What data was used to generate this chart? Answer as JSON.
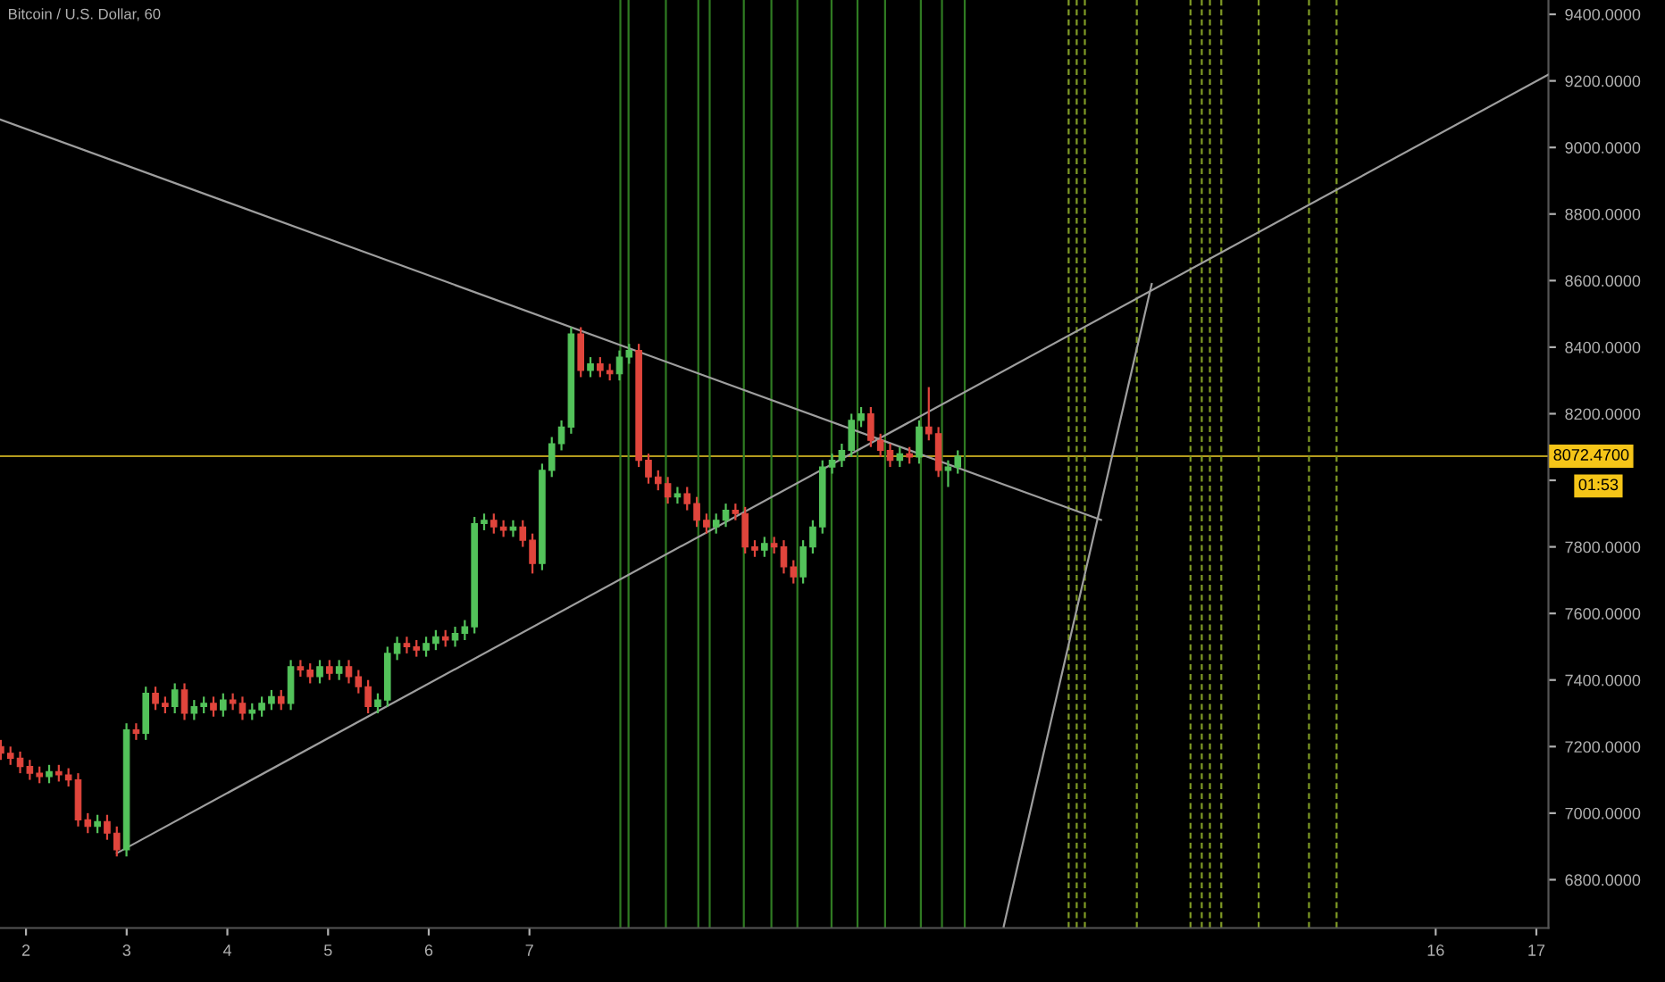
{
  "chart_data": {
    "type": "candlestick",
    "title": "Bitcoin / U.S. Dollar, 60",
    "x": [
      1.75,
      1.846,
      1.942,
      2.038,
      2.134,
      2.23,
      2.326,
      2.422,
      2.518,
      2.614,
      2.71,
      2.806,
      2.902,
      2.998,
      3.094,
      3.19,
      3.286,
      3.382,
      3.478,
      3.574,
      3.67,
      3.766,
      3.862,
      3.958,
      4.054,
      4.15,
      4.246,
      4.342,
      4.438,
      4.534,
      4.63,
      4.726,
      4.822,
      4.918,
      5.014,
      5.11,
      5.206,
      5.302,
      5.398,
      5.494,
      5.59,
      5.686,
      5.782,
      5.878,
      5.974,
      6.07,
      6.166,
      6.262,
      6.358,
      6.454,
      6.55,
      6.646,
      6.742,
      6.838,
      6.934,
      7.03,
      7.126,
      7.222,
      7.318,
      7.414,
      7.51,
      7.606,
      7.702,
      7.798,
      7.894,
      7.99,
      8.086,
      8.182,
      8.278,
      8.374,
      8.47,
      8.566,
      8.662,
      8.758,
      8.854,
      8.95,
      9.046,
      9.142,
      9.238,
      9.334,
      9.43,
      9.526,
      9.622,
      9.718,
      9.814,
      9.91,
      10.006,
      10.102,
      10.198,
      10.294,
      10.39,
      10.486,
      10.582,
      10.678,
      10.774,
      10.87,
      10.966,
      11.062,
      11.158,
      11.254
    ],
    "ohlc": [
      [
        7200,
        7220,
        7160,
        7180
      ],
      [
        7180,
        7200,
        7145,
        7165
      ],
      [
        7165,
        7185,
        7120,
        7140
      ],
      [
        7140,
        7160,
        7100,
        7120
      ],
      [
        7120,
        7140,
        7090,
        7110
      ],
      [
        7110,
        7145,
        7090,
        7125
      ],
      [
        7125,
        7145,
        7095,
        7115
      ],
      [
        7115,
        7135,
        7080,
        7100
      ],
      [
        7100,
        7120,
        6960,
        6980
      ],
      [
        6980,
        7000,
        6940,
        6960
      ],
      [
        6960,
        6995,
        6940,
        6975
      ],
      [
        6975,
        6995,
        6920,
        6940
      ],
      [
        6940,
        6960,
        6870,
        6890
      ],
      [
        6890,
        7270,
        6870,
        7250
      ],
      [
        7250,
        7270,
        7220,
        7240
      ],
      [
        7240,
        7380,
        7220,
        7360
      ],
      [
        7360,
        7380,
        7310,
        7330
      ],
      [
        7330,
        7350,
        7300,
        7320
      ],
      [
        7320,
        7390,
        7300,
        7370
      ],
      [
        7370,
        7390,
        7280,
        7300
      ],
      [
        7300,
        7340,
        7280,
        7320
      ],
      [
        7320,
        7350,
        7300,
        7330
      ],
      [
        7330,
        7350,
        7290,
        7310
      ],
      [
        7310,
        7360,
        7290,
        7340
      ],
      [
        7340,
        7360,
        7310,
        7330
      ],
      [
        7330,
        7350,
        7280,
        7300
      ],
      [
        7300,
        7330,
        7280,
        7310
      ],
      [
        7310,
        7350,
        7290,
        7330
      ],
      [
        7330,
        7370,
        7310,
        7350
      ],
      [
        7350,
        7370,
        7310,
        7330
      ],
      [
        7330,
        7460,
        7310,
        7440
      ],
      [
        7440,
        7460,
        7410,
        7430
      ],
      [
        7430,
        7450,
        7390,
        7410
      ],
      [
        7410,
        7460,
        7390,
        7440
      ],
      [
        7440,
        7460,
        7400,
        7420
      ],
      [
        7420,
        7460,
        7400,
        7440
      ],
      [
        7440,
        7460,
        7390,
        7410
      ],
      [
        7410,
        7430,
        7360,
        7380
      ],
      [
        7380,
        7400,
        7300,
        7320
      ],
      [
        7320,
        7360,
        7300,
        7340
      ],
      [
        7340,
        7500,
        7320,
        7480
      ],
      [
        7480,
        7530,
        7460,
        7510
      ],
      [
        7510,
        7530,
        7480,
        7500
      ],
      [
        7500,
        7520,
        7470,
        7490
      ],
      [
        7490,
        7530,
        7470,
        7510
      ],
      [
        7510,
        7550,
        7490,
        7530
      ],
      [
        7530,
        7550,
        7500,
        7520
      ],
      [
        7520,
        7560,
        7500,
        7540
      ],
      [
        7540,
        7580,
        7520,
        7560
      ],
      [
        7560,
        7890,
        7540,
        7870
      ],
      [
        7870,
        7900,
        7850,
        7880
      ],
      [
        7880,
        7900,
        7840,
        7860
      ],
      [
        7860,
        7880,
        7830,
        7850
      ],
      [
        7850,
        7880,
        7830,
        7860
      ],
      [
        7860,
        7880,
        7800,
        7820
      ],
      [
        7820,
        7840,
        7720,
        7750
      ],
      [
        7750,
        8050,
        7730,
        8030
      ],
      [
        8030,
        8130,
        8010,
        8110
      ],
      [
        8110,
        8180,
        8090,
        8160
      ],
      [
        8160,
        8460,
        8140,
        8440
      ],
      [
        8440,
        8460,
        8310,
        8330
      ],
      [
        8330,
        8370,
        8310,
        8350
      ],
      [
        8350,
        8370,
        8310,
        8330
      ],
      [
        8330,
        8350,
        8300,
        8320
      ],
      [
        8320,
        8390,
        8300,
        8370
      ],
      [
        8370,
        8410,
        8350,
        8390
      ],
      [
        8390,
        8410,
        8040,
        8060
      ],
      [
        8060,
        8080,
        7990,
        8010
      ],
      [
        8010,
        8030,
        7970,
        7990
      ],
      [
        7990,
        8010,
        7930,
        7950
      ],
      [
        7950,
        7980,
        7930,
        7960
      ],
      [
        7960,
        7980,
        7910,
        7930
      ],
      [
        7930,
        7950,
        7860,
        7880
      ],
      [
        7880,
        7900,
        7840,
        7860
      ],
      [
        7860,
        7900,
        7840,
        7880
      ],
      [
        7880,
        7930,
        7860,
        7910
      ],
      [
        7910,
        7930,
        7880,
        7900
      ],
      [
        7900,
        7920,
        7780,
        7800
      ],
      [
        7800,
        7820,
        7770,
        7790
      ],
      [
        7790,
        7830,
        7770,
        7810
      ],
      [
        7810,
        7830,
        7780,
        7800
      ],
      [
        7800,
        7820,
        7720,
        7740
      ],
      [
        7740,
        7760,
        7690,
        7710
      ],
      [
        7710,
        7820,
        7690,
        7800
      ],
      [
        7800,
        7880,
        7780,
        7860
      ],
      [
        7860,
        8060,
        7840,
        8040
      ],
      [
        8040,
        8080,
        8020,
        8060
      ],
      [
        8060,
        8110,
        8040,
        8090
      ],
      [
        8090,
        8200,
        8070,
        8180
      ],
      [
        8180,
        8220,
        8160,
        8200
      ],
      [
        8200,
        8220,
        8100,
        8120
      ],
      [
        8120,
        8140,
        8070,
        8090
      ],
      [
        8090,
        8110,
        8040,
        8060
      ],
      [
        8060,
        8100,
        8040,
        8080
      ],
      [
        8080,
        8100,
        8050,
        8070
      ],
      [
        8070,
        8180,
        8050,
        8160
      ],
      [
        8160,
        8280,
        8120,
        8140
      ],
      [
        8140,
        8160,
        8010,
        8030
      ],
      [
        8030,
        8060,
        7980,
        8040
      ],
      [
        8040,
        8090,
        8020,
        8072.47
      ]
    ],
    "colors": [
      "#e0453c",
      "#e0453c",
      "#e0453c",
      "#e0453c",
      "#e0453c",
      "#53c25a",
      "#e0453c",
      "#e0453c",
      "#e0453c",
      "#e0453c",
      "#53c25a",
      "#e0453c",
      "#e0453c",
      "#53c25a",
      "#e0453c",
      "#53c25a",
      "#e0453c",
      "#e0453c",
      "#53c25a",
      "#e0453c",
      "#53c25a",
      "#53c25a",
      "#e0453c",
      "#53c25a",
      "#e0453c",
      "#e0453c",
      "#53c25a",
      "#53c25a",
      "#53c25a",
      "#e0453c",
      "#53c25a",
      "#e0453c",
      "#e0453c",
      "#53c25a",
      "#e0453c",
      "#53c25a",
      "#e0453c",
      "#e0453c",
      "#e0453c",
      "#53c25a",
      "#53c25a",
      "#53c25a",
      "#e0453c",
      "#e0453c",
      "#53c25a",
      "#53c25a",
      "#e0453c",
      "#53c25a",
      "#53c25a",
      "#53c25a",
      "#53c25a",
      "#e0453c",
      "#e0453c",
      "#53c25a",
      "#e0453c",
      "#e0453c",
      "#53c25a",
      "#53c25a",
      "#53c25a",
      "#53c25a",
      "#e0453c",
      "#53c25a",
      "#e0453c",
      "#e0453c",
      "#53c25a",
      "#53c25a",
      "#e0453c",
      "#e0453c",
      "#e0453c",
      "#e0453c",
      "#53c25a",
      "#e0453c",
      "#e0453c",
      "#e0453c",
      "#53c25a",
      "#53c25a",
      "#e0453c",
      "#e0453c",
      "#e0453c",
      "#53c25a",
      "#e0453c",
      "#e0453c",
      "#e0453c",
      "#53c25a",
      "#53c25a",
      "#53c25a",
      "#53c25a",
      "#53c25a",
      "#53c25a",
      "#53c25a",
      "#e0453c",
      "#e0453c",
      "#e0453c",
      "#53c25a",
      "#e0453c",
      "#53c25a",
      "#e0453c",
      "#e0453c",
      "#53c25a",
      "#53c25a"
    ],
    "series": [
      {
        "type": "line",
        "color": "#9e9e9e",
        "x": [
          1.742,
          12.677
        ],
        "values": [
          9084,
          7881
        ]
      },
      {
        "type": "line",
        "color": "#9e9e9e",
        "x": [
          2.903,
          17.12
        ],
        "values": [
          6880,
          9219
        ]
      },
      {
        "type": "line",
        "color": "#9e9e9e",
        "x": [
          11.71,
          13.18
        ],
        "values": [
          6660,
          8590
        ]
      }
    ],
    "ref_lines": [
      {
        "axis": "y",
        "value": 8072.47,
        "label": "8072.4700",
        "color": "#b59b1e",
        "line_style": "solid"
      },
      {
        "axis": "x",
        "value": 7.903,
        "color": "#2f7a22",
        "line_style": "solid"
      },
      {
        "axis": "x",
        "value": 7.984,
        "color": "#2f7a22",
        "line_style": "solid"
      },
      {
        "axis": "x",
        "value": 8.355,
        "color": "#2f7a22",
        "line_style": "solid"
      },
      {
        "axis": "x",
        "value": 8.677,
        "color": "#2f7a22",
        "line_style": "solid"
      },
      {
        "axis": "x",
        "value": 8.79,
        "color": "#2f7a22",
        "line_style": "solid"
      },
      {
        "axis": "x",
        "value": 9.129,
        "color": "#2f7a22",
        "line_style": "solid"
      },
      {
        "axis": "x",
        "value": 9.403,
        "color": "#2f7a22",
        "line_style": "solid"
      },
      {
        "axis": "x",
        "value": 9.661,
        "color": "#2f7a22",
        "line_style": "solid"
      },
      {
        "axis": "x",
        "value": 10.0,
        "color": "#2f7a22",
        "line_style": "solid"
      },
      {
        "axis": "x",
        "value": 10.258,
        "color": "#2f7a22",
        "line_style": "solid"
      },
      {
        "axis": "x",
        "value": 10.532,
        "color": "#2f7a22",
        "line_style": "solid"
      },
      {
        "axis": "x",
        "value": 10.887,
        "color": "#2f7a22",
        "line_style": "solid"
      },
      {
        "axis": "x",
        "value": 11.097,
        "color": "#2f7a22",
        "line_style": "solid"
      },
      {
        "axis": "x",
        "value": 11.323,
        "color": "#2f7a22",
        "line_style": "solid"
      },
      {
        "axis": "x",
        "value": 12.355,
        "color": "#7f9a25",
        "line_style": "dashed"
      },
      {
        "axis": "x",
        "value": 12.435,
        "color": "#7f9a25",
        "line_style": "dashed"
      },
      {
        "axis": "x",
        "value": 12.516,
        "color": "#7f9a25",
        "line_style": "dashed"
      },
      {
        "axis": "x",
        "value": 13.032,
        "color": "#7f9a25",
        "line_style": "dashed"
      },
      {
        "axis": "x",
        "value": 13.565,
        "color": "#7f9a25",
        "line_style": "dashed"
      },
      {
        "axis": "x",
        "value": 13.677,
        "color": "#7f9a25",
        "line_style": "dashed"
      },
      {
        "axis": "x",
        "value": 13.758,
        "color": "#7f9a25",
        "line_style": "dashed"
      },
      {
        "axis": "x",
        "value": 13.871,
        "color": "#7f9a25",
        "line_style": "dashed"
      },
      {
        "axis": "x",
        "value": 14.242,
        "color": "#7f9a25",
        "line_style": "dashed"
      },
      {
        "axis": "x",
        "value": 14.742,
        "color": "#7f9a25",
        "line_style": "dashed"
      },
      {
        "axis": "x",
        "value": 15.016,
        "color": "#7f9a25",
        "line_style": "dashed"
      }
    ],
    "annotations": [
      "01:53"
    ],
    "xlim": [
      1.742,
      17.12
    ],
    "ylim": [
      6655,
      9443
    ],
    "xticks": [
      2,
      3,
      4,
      5,
      6,
      7,
      16,
      17
    ],
    "yticks": [
      {
        "value": 6800,
        "label": "6800.0000"
      },
      {
        "value": 7000,
        "label": "7000.0000"
      },
      {
        "value": 7200,
        "label": "7200.0000"
      },
      {
        "value": 7400,
        "label": "7400.0000"
      },
      {
        "value": 7600,
        "label": "7600.0000"
      },
      {
        "value": 7800,
        "label": "7800.0000"
      },
      {
        "value": 8000,
        "label": null
      },
      {
        "value": 8200,
        "label": "8200.0000"
      },
      {
        "value": 8400,
        "label": "8400.0000"
      },
      {
        "value": 8600,
        "label": "8600.0000"
      },
      {
        "value": 8800,
        "label": "8800.0000"
      },
      {
        "value": 9000,
        "label": "9000.0000"
      },
      {
        "value": 9200,
        "label": "9200.0000"
      },
      {
        "value": 9400,
        "label": "9400.0000"
      }
    ],
    "grid": false,
    "legend": false
  }
}
